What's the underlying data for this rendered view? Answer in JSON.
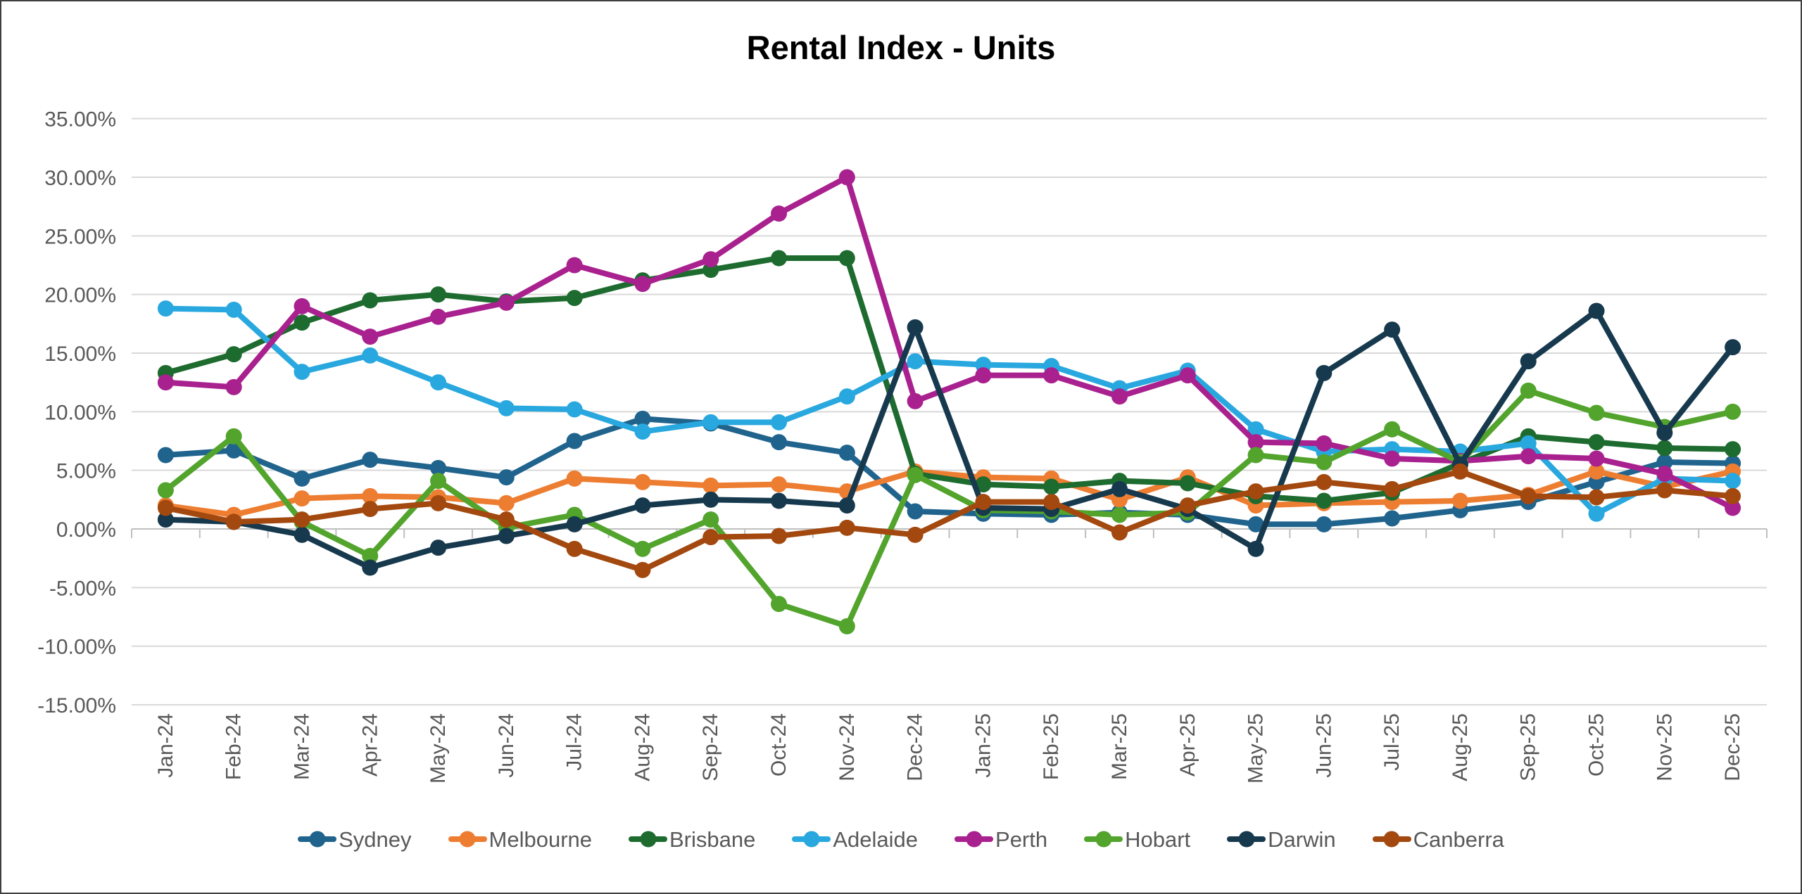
{
  "chart_data": {
    "type": "line",
    "title": "Rental Index - Units",
    "x_categories": [
      "Jan-24",
      "Feb-24",
      "Mar-24",
      "Apr-24",
      "May-24",
      "Jun-24",
      "Jul-24",
      "Aug-24",
      "Sep-24",
      "Oct-24",
      "Nov-24",
      "Dec-24",
      "Jan-25",
      "Feb-25",
      "Mar-25",
      "Apr-25",
      "May-25",
      "Jun-25",
      "Jul-25",
      "Aug-25",
      "Sep-25",
      "Oct-25",
      "Nov-25",
      "Dec-25"
    ],
    "series": [
      {
        "name": "Sydney",
        "color": "#20648E",
        "values": [
          6.3,
          6.7,
          4.3,
          5.9,
          5.2,
          4.4,
          7.5,
          9.4,
          9.0,
          7.4,
          6.5,
          1.5,
          1.3,
          1.2,
          1.4,
          1.2,
          0.4,
          0.4,
          0.9,
          1.6,
          2.3,
          4.0,
          5.7,
          5.6
        ]
      },
      {
        "name": "Melbourne",
        "color": "#ED7D31",
        "values": [
          2.0,
          1.2,
          2.6,
          2.8,
          2.7,
          2.2,
          4.3,
          4.0,
          3.7,
          3.8,
          3.2,
          4.9,
          4.4,
          4.3,
          2.5,
          4.4,
          2.0,
          2.2,
          2.3,
          2.4,
          2.9,
          4.9,
          3.6,
          4.9
        ]
      },
      {
        "name": "Brisbane",
        "color": "#1E6B2F",
        "values": [
          13.3,
          14.9,
          17.6,
          19.5,
          20.0,
          19.4,
          19.7,
          21.2,
          22.1,
          23.1,
          23.1,
          4.7,
          3.8,
          3.6,
          4.1,
          3.9,
          2.8,
          2.4,
          3.1,
          5.6,
          7.9,
          7.4,
          6.9,
          6.8
        ]
      },
      {
        "name": "Adelaide",
        "color": "#29A8DF",
        "values": [
          18.8,
          18.7,
          13.4,
          14.8,
          12.5,
          10.3,
          10.2,
          8.3,
          9.1,
          9.1,
          11.3,
          14.3,
          14.0,
          13.9,
          12.0,
          13.5,
          8.5,
          6.6,
          6.8,
          6.6,
          7.3,
          1.3,
          4.3,
          4.1
        ]
      },
      {
        "name": "Perth",
        "color": "#A9218E",
        "values": [
          12.5,
          12.1,
          19.0,
          16.4,
          18.1,
          19.3,
          22.5,
          20.9,
          23.0,
          26.9,
          30.0,
          10.9,
          13.1,
          13.1,
          11.3,
          13.1,
          7.4,
          7.3,
          6.0,
          5.8,
          6.2,
          6.0,
          4.7,
          1.8
        ]
      },
      {
        "name": "Hobart",
        "color": "#52A42D",
        "values": [
          3.3,
          7.9,
          0.6,
          -2.3,
          4.1,
          0.1,
          1.2,
          -1.7,
          0.8,
          -6.4,
          -8.3,
          4.6,
          1.6,
          1.5,
          1.2,
          1.4,
          6.3,
          5.7,
          8.5,
          5.7,
          11.8,
          9.9,
          8.7,
          10.0
        ]
      },
      {
        "name": "Darwin",
        "color": "#17394E",
        "values": [
          0.8,
          0.6,
          -0.5,
          -3.3,
          -1.6,
          -0.6,
          0.4,
          2.0,
          2.5,
          2.4,
          2.0,
          17.2,
          1.8,
          1.7,
          3.4,
          1.7,
          -1.7,
          13.3,
          17.0,
          5.5,
          14.3,
          18.6,
          8.2,
          15.5
        ]
      },
      {
        "name": "Canberra",
        "color": "#A3490F",
        "values": [
          1.8,
          0.6,
          0.8,
          1.7,
          2.2,
          0.8,
          -1.7,
          -3.5,
          -0.7,
          -0.6,
          0.1,
          -0.5,
          2.3,
          2.3,
          -0.3,
          2.0,
          3.2,
          4.0,
          3.4,
          4.9,
          2.8,
          2.7,
          3.3,
          2.8
        ]
      }
    ],
    "ylim": [
      -15,
      35
    ],
    "ytick_step": 5,
    "yticks": [
      {
        "value": 35,
        "label": "35.00%"
      },
      {
        "value": 30,
        "label": "30.00%"
      },
      {
        "value": 25,
        "label": "25.00%"
      },
      {
        "value": 20,
        "label": "20.00%"
      },
      {
        "value": 15,
        "label": "15.00%"
      },
      {
        "value": 10,
        "label": "10.00%"
      },
      {
        "value": 5,
        "label": "5.00%"
      },
      {
        "value": 0,
        "label": "0.00%"
      },
      {
        "value": -5,
        "label": "-5.00%"
      },
      {
        "value": -10,
        "label": "-10.00%"
      },
      {
        "value": -15,
        "label": "-15.00%"
      }
    ],
    "grid": true,
    "legend_position": "bottom",
    "marker": "circle",
    "colors": {
      "title": "#000000",
      "axis_labels": "#595959",
      "gridline": "#D9D9D9",
      "axis_line": "#BFBFBF",
      "background": "#FFFFFF",
      "frame_border": "#3F3F3F"
    }
  }
}
